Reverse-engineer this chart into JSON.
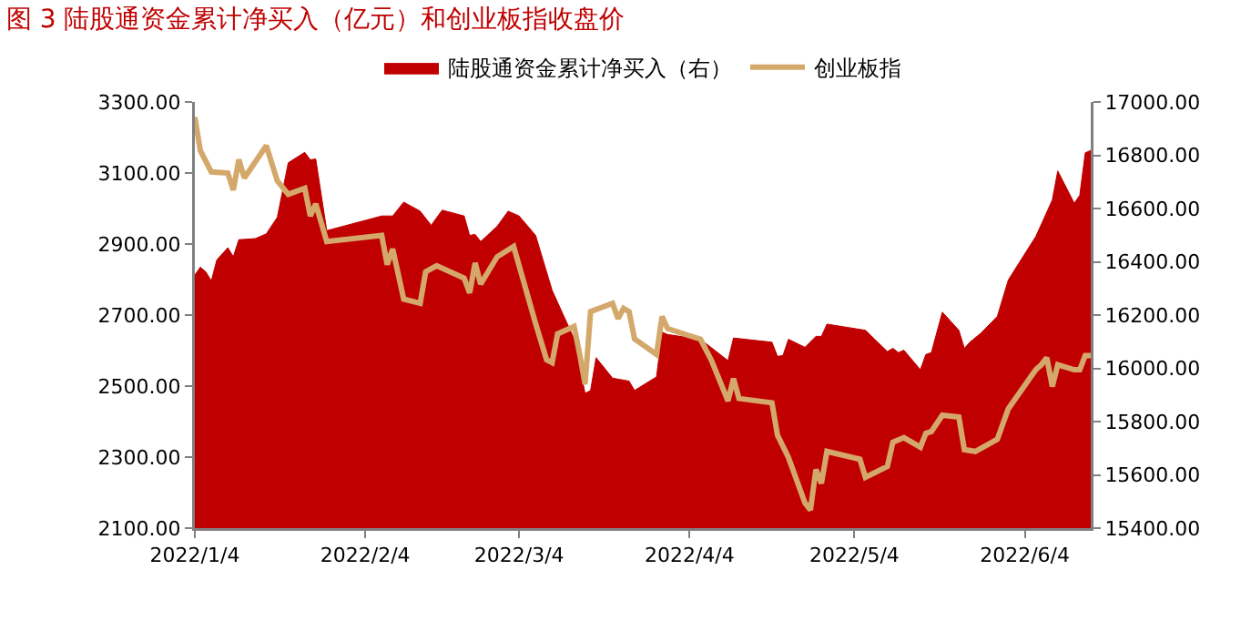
{
  "chart_data": {
    "type": "line",
    "title": "图 3 陆股通资金累计净买入（亿元）和创业板指收盘价",
    "series": [
      {
        "name": "陆股通资金累计净买入（右）",
        "type": "area",
        "axis": "y2",
        "color": "#c00000",
        "x": [
          "2022-01-04",
          "2022-01-05",
          "2022-01-06",
          "2022-01-07",
          "2022-01-08",
          "2022-01-10",
          "2022-01-11",
          "2022-01-12",
          "2022-01-15",
          "2022-01-17",
          "2022-01-19",
          "2022-01-21",
          "2022-01-24",
          "2022-01-25",
          "2022-01-26",
          "2022-01-28",
          "2022-02-07",
          "2022-02-09",
          "2022-02-11",
          "2022-02-14",
          "2022-02-16",
          "2022-02-18",
          "2022-02-22",
          "2022-02-23",
          "2022-02-24",
          "2022-02-25",
          "2022-02-28",
          "2022-03-02",
          "2022-03-04",
          "2022-03-07",
          "2022-03-10",
          "2022-03-14",
          "2022-03-16",
          "2022-03-17",
          "2022-03-18",
          "2022-03-21",
          "2022-03-24",
          "2022-03-25",
          "2022-03-29",
          "2022-03-30",
          "2022-03-31",
          "2022-04-06",
          "2022-04-11",
          "2022-04-12",
          "2022-04-19",
          "2022-04-20",
          "2022-04-21",
          "2022-04-22",
          "2022-04-25",
          "2022-04-27",
          "2022-04-28",
          "2022-04-29",
          "2022-05-06",
          "2022-05-10",
          "2022-05-11",
          "2022-05-12",
          "2022-05-13",
          "2022-05-16",
          "2022-05-17",
          "2022-05-18",
          "2022-05-20",
          "2022-05-23",
          "2022-05-24",
          "2022-05-25",
          "2022-05-27",
          "2022-05-30",
          "2022-06-01",
          "2022-06-06",
          "2022-06-09",
          "2022-06-10",
          "2022-06-13",
          "2022-06-14",
          "2022-06-15",
          "2022-06-16"
        ],
        "values": [
          16350,
          16380,
          16362,
          16328,
          16407,
          16453,
          16419,
          16483,
          16487,
          16505,
          16567,
          16772,
          16811,
          16783,
          16786,
          16517,
          16572,
          16572,
          16624,
          16590,
          16537,
          16594,
          16572,
          16499,
          16503,
          16476,
          16533,
          16590,
          16572,
          16499,
          16293,
          16111,
          15906,
          15917,
          16040,
          15963,
          15952,
          15917,
          15968,
          16136,
          16127,
          16109,
          16029,
          16114,
          16098,
          16045,
          16048,
          16109,
          16079,
          16120,
          16120,
          16166,
          16143,
          16063,
          16075,
          16059,
          16068,
          15995,
          16052,
          16059,
          16211,
          16143,
          16075,
          16098,
          16132,
          16195,
          16332,
          16495,
          16632,
          16741,
          16620,
          16650,
          16809,
          16818
        ]
      },
      {
        "name": "创业板指",
        "type": "line",
        "color": "#d4a86a",
        "x": [
          "2022-01-04",
          "2022-01-05",
          "2022-01-07",
          "2022-01-10",
          "2022-01-11",
          "2022-01-12",
          "2022-01-13",
          "2022-01-17",
          "2022-01-19",
          "2022-01-21",
          "2022-01-24",
          "2022-01-25",
          "2022-01-26",
          "2022-01-28",
          "2022-02-07",
          "2022-02-08",
          "2022-02-09",
          "2022-02-11",
          "2022-02-14",
          "2022-02-15",
          "2022-02-17",
          "2022-02-22",
          "2022-02-23",
          "2022-02-24",
          "2022-02-25",
          "2022-02-28",
          "2022-03-03",
          "2022-03-07",
          "2022-03-09",
          "2022-03-10",
          "2022-03-11",
          "2022-03-14",
          "2022-03-15",
          "2022-03-16",
          "2022-03-17",
          "2022-03-21",
          "2022-03-22",
          "2022-03-23",
          "2022-03-24",
          "2022-03-25",
          "2022-03-29",
          "2022-03-30",
          "2022-03-31",
          "2022-04-06",
          "2022-04-08",
          "2022-04-11",
          "2022-04-12",
          "2022-04-13",
          "2022-04-19",
          "2022-04-20",
          "2022-04-22",
          "2022-04-25",
          "2022-04-26",
          "2022-04-27",
          "2022-04-28",
          "2022-04-29",
          "2022-05-05",
          "2022-05-06",
          "2022-05-10",
          "2022-05-11",
          "2022-05-13",
          "2022-05-16",
          "2022-05-17",
          "2022-05-18",
          "2022-05-20",
          "2022-05-23",
          "2022-05-24",
          "2022-05-26",
          "2022-05-30",
          "2022-06-01",
          "2022-06-06",
          "2022-06-07",
          "2022-06-08",
          "2022-06-09",
          "2022-06-10",
          "2022-06-13",
          "2022-06-14",
          "2022-06-15",
          "2022-06-16"
        ],
        "values": [
          3257,
          3163,
          3103,
          3100,
          3052,
          3138,
          3086,
          3177,
          3078,
          3040,
          3057,
          2979,
          3013,
          2907,
          2924,
          2842,
          2886,
          2745,
          2733,
          2822,
          2839,
          2804,
          2762,
          2847,
          2787,
          2864,
          2893,
          2676,
          2574,
          2566,
          2647,
          2668,
          2591,
          2505,
          2710,
          2733,
          2690,
          2719,
          2710,
          2633,
          2589,
          2696,
          2662,
          2632,
          2572,
          2458,
          2521,
          2465,
          2453,
          2362,
          2299,
          2171,
          2151,
          2265,
          2226,
          2316,
          2294,
          2243,
          2274,
          2342,
          2355,
          2328,
          2367,
          2372,
          2418,
          2413,
          2321,
          2316,
          2350,
          2436,
          2546,
          2560,
          2580,
          2499,
          2560,
          2546,
          2546,
          2586,
          2586
        ]
      }
    ],
    "xlim": [
      "2022-01-04",
      "2022-06-16"
    ],
    "xticks": [
      {
        "value": "2022-01-04",
        "label": "2022/1/4"
      },
      {
        "value": "2022-02-04",
        "label": "2022/2/4"
      },
      {
        "value": "2022-03-04",
        "label": "2022/3/4"
      },
      {
        "value": "2022-04-04",
        "label": "2022/4/4"
      },
      {
        "value": "2022-05-04",
        "label": "2022/5/4"
      },
      {
        "value": "2022-06-04",
        "label": "2022/6/4"
      }
    ],
    "ylim": [
      2100,
      3300
    ],
    "yticks": [
      {
        "value": 2100,
        "label": "2100.00"
      },
      {
        "value": 2300,
        "label": "2300.00"
      },
      {
        "value": 2500,
        "label": "2500.00"
      },
      {
        "value": 2700,
        "label": "2700.00"
      },
      {
        "value": 2900,
        "label": "2900.00"
      },
      {
        "value": 3100,
        "label": "3100.00"
      },
      {
        "value": 3300,
        "label": "3300.00"
      }
    ],
    "y2lim": [
      15400,
      17000
    ],
    "y2ticks": [
      {
        "value": 15400,
        "label": "15400.00"
      },
      {
        "value": 15600,
        "label": "15600.00"
      },
      {
        "value": 15800,
        "label": "15800.00"
      },
      {
        "value": 16000,
        "label": "16000.00"
      },
      {
        "value": 16200,
        "label": "16200.00"
      },
      {
        "value": 16400,
        "label": "16400.00"
      },
      {
        "value": 16600,
        "label": "16600.00"
      },
      {
        "value": 16800,
        "label": "16800.00"
      },
      {
        "value": 17000,
        "label": "17000.00"
      }
    ],
    "grid": false,
    "legend": "top",
    "marker": "none",
    "line_style": "solid"
  }
}
